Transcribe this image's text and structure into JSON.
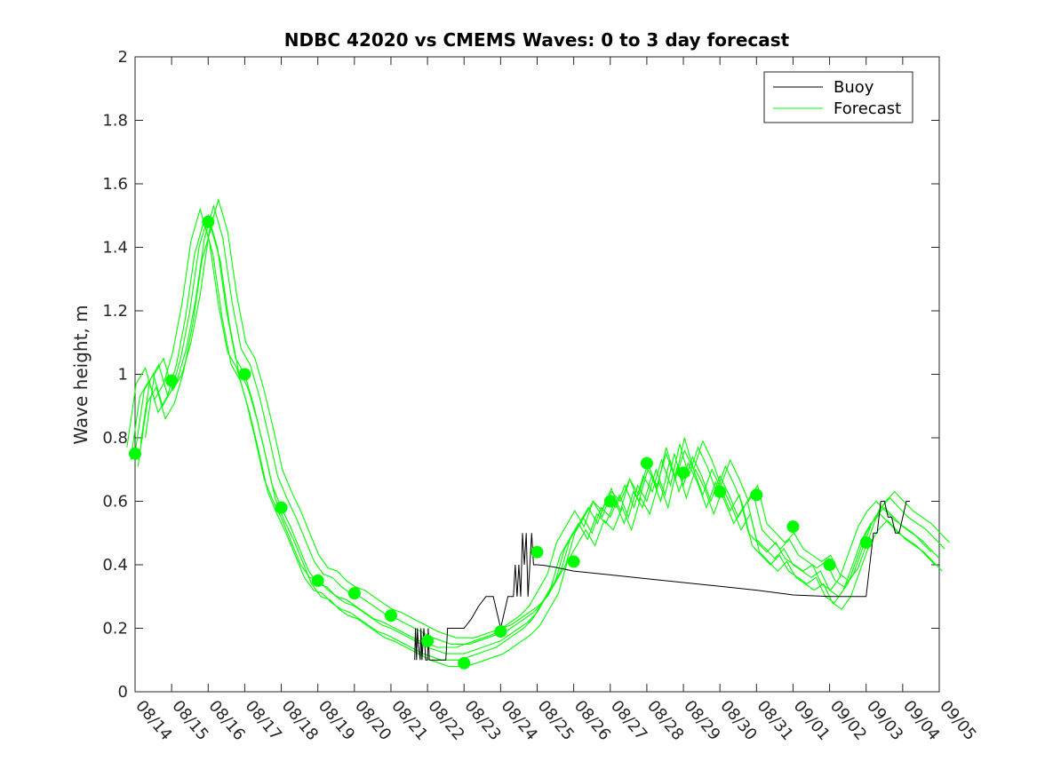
{
  "chart_data": {
    "type": "line",
    "title": "NDBC 42020 vs CMEMS Waves: 0 to 3 day forecast",
    "xlabel": "",
    "ylabel": "Wave height, m",
    "x_ticks": [
      "08/14",
      "08/15",
      "08/16",
      "08/17",
      "08/18",
      "08/19",
      "08/20",
      "08/21",
      "08/22",
      "08/23",
      "08/24",
      "08/25",
      "08/26",
      "08/27",
      "08/28",
      "08/29",
      "08/30",
      "08/31",
      "09/01",
      "09/02",
      "09/03",
      "09/04",
      "09/05"
    ],
    "xlim": [
      0,
      22
    ],
    "ylim": [
      0,
      2
    ],
    "y_ticks": [
      0,
      0.2,
      0.4,
      0.6,
      0.8,
      1,
      1.2,
      1.4,
      1.6,
      1.8,
      2
    ],
    "y_tick_labels": [
      "0",
      "0.2",
      "0.4",
      "0.6",
      "0.8",
      "1",
      "1.2",
      "1.4",
      "1.6",
      "1.8",
      "2"
    ],
    "legend": {
      "position": "top-right",
      "entries": [
        "Buoy",
        "Forecast"
      ]
    },
    "colors": {
      "buoy": "#000000",
      "forecast": "#00ff00",
      "axes": "#262626"
    },
    "series": [
      {
        "name": "Buoy",
        "x": [
          7.65,
          7.67,
          7.7,
          7.72,
          7.75,
          7.8,
          7.82,
          7.85,
          7.9,
          7.95,
          8.0,
          8.02,
          8.05,
          8.1,
          8.15,
          8.3,
          8.5,
          8.55,
          8.6,
          8.9,
          8.95,
          9.0,
          9.2,
          9.4,
          9.6,
          9.8,
          10.0,
          10.2,
          10.35,
          10.4,
          10.45,
          10.5,
          10.55,
          10.6,
          10.65,
          10.7,
          10.75,
          10.8,
          10.85,
          10.9,
          10.95,
          11.0,
          11.2,
          11.5,
          12.0,
          13.0,
          14.0,
          15.0,
          16.0,
          17.0,
          18.0,
          19.0,
          20.0,
          20.1,
          20.2,
          20.3,
          20.4,
          20.5,
          20.6,
          20.7,
          20.8,
          20.9,
          21.0,
          21.1,
          21.2
        ],
        "y": [
          0.1,
          0.2,
          0.1,
          0.2,
          0.15,
          0.1,
          0.2,
          0.1,
          0.2,
          0.1,
          0.1,
          0.2,
          0.1,
          0.1,
          0.1,
          0.1,
          0.1,
          0.2,
          0.2,
          0.2,
          0.2,
          0.2,
          0.23,
          0.27,
          0.3,
          0.3,
          0.2,
          0.3,
          0.3,
          0.4,
          0.3,
          0.4,
          0.3,
          0.5,
          0.4,
          0.5,
          0.3,
          0.4,
          0.5,
          0.4,
          0.4,
          0.4,
          0.398,
          0.392,
          0.38,
          0.368,
          0.356,
          0.344,
          0.332,
          0.32,
          0.305,
          0.3,
          0.3,
          0.4,
          0.5,
          0.5,
          0.6,
          0.6,
          0.55,
          0.55,
          0.5,
          0.5,
          0.55,
          0.6,
          0.6
        ]
      },
      {
        "name": "Forecast",
        "x": [
          0,
          0.25,
          0.5,
          0.75,
          1.0,
          1.25,
          1.5,
          1.75,
          2.0,
          2.25,
          2.5,
          2.75,
          3.0,
          3.25,
          3.5,
          3.75,
          4.0,
          4.25,
          4.5,
          4.75,
          5.0,
          5.25,
          5.5,
          5.75,
          6.0,
          6.25,
          6.5,
          6.75,
          7.0,
          7.5,
          8.0,
          8.25,
          8.5,
          8.75,
          9.0,
          9.25,
          9.5,
          9.75,
          10.0,
          10.25,
          10.5,
          10.75,
          11.0,
          11.25,
          11.5,
          11.75,
          12.0,
          12.25,
          12.5,
          12.75,
          13.0,
          13.25,
          13.5,
          13.75,
          14.0,
          14.25,
          14.5,
          14.75,
          15.0,
          15.25,
          15.5,
          15.75,
          16.0,
          16.25,
          16.5,
          16.75,
          17.0,
          17.25,
          17.5,
          17.75,
          18.0,
          18.25,
          18.5,
          18.75,
          19.0,
          19.25,
          19.5,
          19.75,
          20.0,
          20.25,
          20.5,
          20.75,
          21.0,
          21.25,
          21.5,
          21.75,
          22.0
        ],
        "y": [
          0.75,
          0.95,
          1.0,
          0.9,
          0.95,
          1.05,
          1.2,
          1.4,
          1.5,
          1.4,
          1.2,
          1.05,
          1.0,
          0.9,
          0.78,
          0.65,
          0.58,
          0.52,
          0.45,
          0.38,
          0.34,
          0.33,
          0.3,
          0.28,
          0.27,
          0.25,
          0.23,
          0.21,
          0.2,
          0.17,
          0.14,
          0.13,
          0.12,
          0.12,
          0.12,
          0.13,
          0.14,
          0.15,
          0.16,
          0.18,
          0.2,
          0.22,
          0.25,
          0.3,
          0.35,
          0.45,
          0.5,
          0.55,
          0.5,
          0.58,
          0.55,
          0.62,
          0.55,
          0.65,
          0.6,
          0.7,
          0.62,
          0.75,
          0.65,
          0.74,
          0.68,
          0.6,
          0.68,
          0.62,
          0.55,
          0.6,
          0.48,
          0.45,
          0.42,
          0.45,
          0.4,
          0.38,
          0.36,
          0.38,
          0.32,
          0.3,
          0.34,
          0.42,
          0.5,
          0.55,
          0.58,
          0.55,
          0.52,
          0.5,
          0.48,
          0.45,
          0.42
        ]
      }
    ],
    "daily_markers": {
      "name": "Forecast",
      "x": [
        0,
        1,
        2,
        3,
        4,
        5,
        6,
        7,
        8,
        9,
        10,
        11,
        12,
        13,
        14,
        15,
        16,
        17,
        18,
        19,
        20
      ],
      "y": [
        0.75,
        0.98,
        1.48,
        1.0,
        0.58,
        0.35,
        0.31,
        0.24,
        0.16,
        0.09,
        0.19,
        0.44,
        0.41,
        0.6,
        0.72,
        0.69,
        0.63,
        0.62,
        0.52,
        0.4,
        0.47
      ]
    }
  }
}
